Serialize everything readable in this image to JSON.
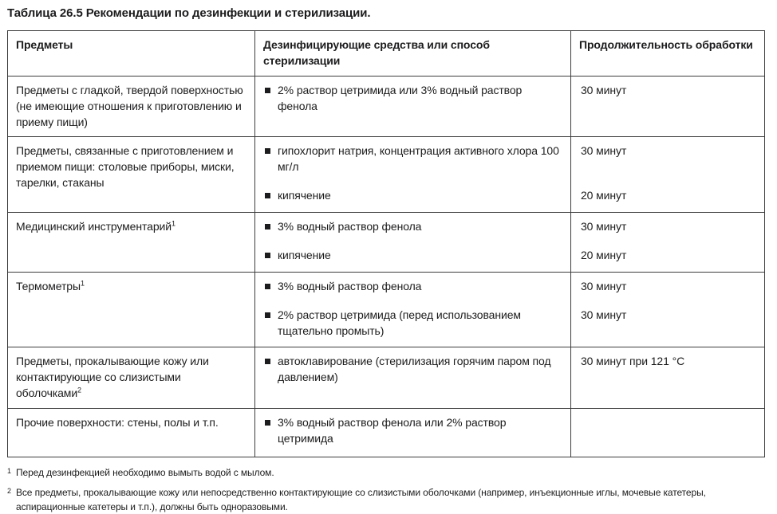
{
  "title": "Таблица 26.5 Рекомендации по дезинфекции и стерилизации.",
  "table": {
    "headers": {
      "items": "Предметы",
      "agents": "Дезинфицирующие средства или способ стерилизации",
      "duration": "Продолжительность обработки"
    },
    "rows": [
      {
        "subject": "Предметы с гладкой, твердой поверхностью (не имеющие отношения к приготовлению и приему пищи)",
        "entries": [
          {
            "method": "2% раствор цетримида или 3% водный раствор фенола",
            "duration": "30 минут"
          }
        ]
      },
      {
        "subject": "Предметы, связанные с приготовлением и приемом пищи: столовые приборы, миски, тарелки, стаканы",
        "entries": [
          {
            "method": "гипохлорит натрия, концентрация активного хлора 100 мг/л",
            "duration": "30 минут"
          },
          {
            "method": "кипячение",
            "duration": "20 минут"
          }
        ]
      },
      {
        "subject": "Медицинский инструментарий",
        "footnote_ref": "1",
        "entries": [
          {
            "method": "3% водный раствор фенола",
            "duration": "30 минут"
          },
          {
            "method": "кипячение",
            "duration": "20 минут"
          }
        ]
      },
      {
        "subject": "Термометры",
        "footnote_ref": "1",
        "entries": [
          {
            "method": "3% водный раствор фенола",
            "duration": "30 минут"
          },
          {
            "method": "2% раствор цетримида (перед использованием тщательно промыть)",
            "duration": "30 минут"
          }
        ]
      },
      {
        "subject": "Предметы, прокалывающие кожу или контактирующие со слизистыми оболочками",
        "footnote_ref": "2",
        "entries": [
          {
            "method": "автоклавирование (стерилизация горячим паром под давлением)",
            "duration": "30 минут при 121 °C"
          }
        ]
      },
      {
        "subject": "Прочие поверхности: стены, полы и т.п.",
        "entries": [
          {
            "method": "3% водный раствор фенола или 2% раствор цетримида",
            "duration": ""
          }
        ]
      }
    ]
  },
  "footnotes": [
    {
      "ref": "1",
      "text": "Перед дезинфекцией необходимо вымыть водой с мылом."
    },
    {
      "ref": "2",
      "text": "Все предметы, прокалывающие кожу или непосредственно контактирующие со слизистыми оболочками (например, инъекционные иглы, мочевые катетеры, аспирационные катетеры и т.п.), должны быть одноразовыми."
    }
  ],
  "colors": {
    "text": "#1c1c1e",
    "border": "#3d3d3d"
  }
}
